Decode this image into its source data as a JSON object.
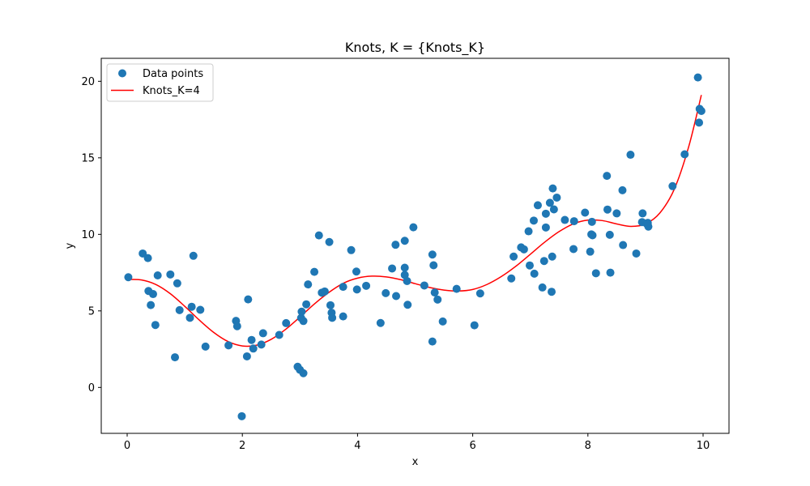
{
  "chart_data": {
    "type": "scatter",
    "title": "Knots, K = {Knots_K}",
    "xlabel": "x",
    "ylabel": "y",
    "xlim": [
      -0.45,
      10.45
    ],
    "ylim": [
      -3.0,
      21.5
    ],
    "xticks": [
      0,
      2,
      4,
      6,
      8,
      10
    ],
    "yticks": [
      0,
      5,
      10,
      15,
      20
    ],
    "legend_position": "top-left",
    "colors": {
      "points": "#1f77b4",
      "line": "#ff0000"
    },
    "series": [
      {
        "name": "Data points",
        "kind": "scatter",
        "points": [
          [
            0.02,
            7.2
          ],
          [
            0.27,
            8.75
          ],
          [
            0.36,
            8.45
          ],
          [
            0.37,
            6.3
          ],
          [
            0.41,
            5.38
          ],
          [
            0.45,
            6.1
          ],
          [
            0.49,
            4.08
          ],
          [
            0.53,
            7.32
          ],
          [
            0.75,
            7.38
          ],
          [
            0.83,
            1.97
          ],
          [
            0.87,
            6.8
          ],
          [
            0.91,
            5.05
          ],
          [
            1.09,
            4.55
          ],
          [
            1.12,
            5.27
          ],
          [
            1.15,
            8.6
          ],
          [
            1.27,
            5.07
          ],
          [
            1.36,
            2.67
          ],
          [
            1.76,
            2.75
          ],
          [
            1.89,
            4.35
          ],
          [
            1.91,
            4.0
          ],
          [
            1.99,
            -1.88
          ],
          [
            2.08,
            2.03
          ],
          [
            2.1,
            5.75
          ],
          [
            2.16,
            3.1
          ],
          [
            2.19,
            2.54
          ],
          [
            2.33,
            2.8
          ],
          [
            2.36,
            3.54
          ],
          [
            2.64,
            3.43
          ],
          [
            2.76,
            4.2
          ],
          [
            2.96,
            1.35
          ],
          [
            3.0,
            1.15
          ],
          [
            3.02,
            4.54
          ],
          [
            3.03,
            4.95
          ],
          [
            3.06,
            4.34
          ],
          [
            3.06,
            0.93
          ],
          [
            3.11,
            5.43
          ],
          [
            3.14,
            6.73
          ],
          [
            3.25,
            7.55
          ],
          [
            3.33,
            9.93
          ],
          [
            3.38,
            6.19
          ],
          [
            3.43,
            6.27
          ],
          [
            3.51,
            9.5
          ],
          [
            3.53,
            5.37
          ],
          [
            3.55,
            4.88
          ],
          [
            3.56,
            4.55
          ],
          [
            3.75,
            4.64
          ],
          [
            3.75,
            6.57
          ],
          [
            3.89,
            8.97
          ],
          [
            3.98,
            7.57
          ],
          [
            3.99,
            6.4
          ],
          [
            4.15,
            6.64
          ],
          [
            4.4,
            4.21
          ],
          [
            4.49,
            6.16
          ],
          [
            4.6,
            7.77
          ],
          [
            4.66,
            9.32
          ],
          [
            4.67,
            5.97
          ],
          [
            4.82,
            9.58
          ],
          [
            4.82,
            7.35
          ],
          [
            4.82,
            7.82
          ],
          [
            4.86,
            6.95
          ],
          [
            4.87,
            5.4
          ],
          [
            4.97,
            10.46
          ],
          [
            5.16,
            6.66
          ],
          [
            5.3,
            3.0
          ],
          [
            5.3,
            8.68
          ],
          [
            5.32,
            7.98
          ],
          [
            5.34,
            6.2
          ],
          [
            5.39,
            5.74
          ],
          [
            5.48,
            4.31
          ],
          [
            5.72,
            6.44
          ],
          [
            6.03,
            4.06
          ],
          [
            6.13,
            6.14
          ],
          [
            6.67,
            7.12
          ],
          [
            6.71,
            8.55
          ],
          [
            6.84,
            9.15
          ],
          [
            6.89,
            9.02
          ],
          [
            6.97,
            10.2
          ],
          [
            6.99,
            7.97
          ],
          [
            7.06,
            10.9
          ],
          [
            7.07,
            7.43
          ],
          [
            7.13,
            11.9
          ],
          [
            7.21,
            6.53
          ],
          [
            7.24,
            8.26
          ],
          [
            7.27,
            10.45
          ],
          [
            7.27,
            11.35
          ],
          [
            7.34,
            12.06
          ],
          [
            7.37,
            6.25
          ],
          [
            7.38,
            8.55
          ],
          [
            7.39,
            13.0
          ],
          [
            7.41,
            11.63
          ],
          [
            7.46,
            12.4
          ],
          [
            7.6,
            10.94
          ],
          [
            7.75,
            9.04
          ],
          [
            7.76,
            10.86
          ],
          [
            7.95,
            11.42
          ],
          [
            8.04,
            8.87
          ],
          [
            8.06,
            10.0
          ],
          [
            8.07,
            10.82
          ],
          [
            8.08,
            9.94
          ],
          [
            8.14,
            7.46
          ],
          [
            8.33,
            13.82
          ],
          [
            8.34,
            11.62
          ],
          [
            8.38,
            9.97
          ],
          [
            8.39,
            7.5
          ],
          [
            8.5,
            11.37
          ],
          [
            8.6,
            12.88
          ],
          [
            8.61,
            9.3
          ],
          [
            8.74,
            15.2
          ],
          [
            8.84,
            8.75
          ],
          [
            8.94,
            10.8
          ],
          [
            8.95,
            11.37
          ],
          [
            9.02,
            10.7
          ],
          [
            9.04,
            10.75
          ],
          [
            9.05,
            10.51
          ],
          [
            9.47,
            13.15
          ],
          [
            9.68,
            15.23
          ],
          [
            9.91,
            20.25
          ],
          [
            9.93,
            17.3
          ],
          [
            9.94,
            18.2
          ],
          [
            9.97,
            18.06
          ]
        ]
      },
      {
        "name": "Knots_K=4",
        "kind": "line",
        "points": [
          [
            0.0,
            7.05
          ],
          [
            0.25,
            7.02
          ],
          [
            0.5,
            6.72
          ],
          [
            0.75,
            6.12
          ],
          [
            1.0,
            5.3
          ],
          [
            1.25,
            4.41
          ],
          [
            1.5,
            3.6
          ],
          [
            1.75,
            3.0
          ],
          [
            2.0,
            2.71
          ],
          [
            2.25,
            2.76
          ],
          [
            2.5,
            3.14
          ],
          [
            2.75,
            3.79
          ],
          [
            3.0,
            4.6
          ],
          [
            3.25,
            5.45
          ],
          [
            3.5,
            6.2
          ],
          [
            3.75,
            6.8
          ],
          [
            4.0,
            7.14
          ],
          [
            4.25,
            7.27
          ],
          [
            4.5,
            7.22
          ],
          [
            4.75,
            7.04
          ],
          [
            5.0,
            6.78
          ],
          [
            5.25,
            6.53
          ],
          [
            5.5,
            6.36
          ],
          [
            5.75,
            6.3
          ],
          [
            6.0,
            6.4
          ],
          [
            6.25,
            6.73
          ],
          [
            6.5,
            7.25
          ],
          [
            6.75,
            7.92
          ],
          [
            7.0,
            8.7
          ],
          [
            7.25,
            9.49
          ],
          [
            7.5,
            10.18
          ],
          [
            7.75,
            10.69
          ],
          [
            8.0,
            10.93
          ],
          [
            8.25,
            10.9
          ],
          [
            8.5,
            10.68
          ],
          [
            8.75,
            10.52
          ],
          [
            9.0,
            10.68
          ],
          [
            9.25,
            11.4
          ],
          [
            9.5,
            12.95
          ],
          [
            9.75,
            15.72
          ],
          [
            9.97,
            19.1
          ]
        ]
      }
    ]
  }
}
